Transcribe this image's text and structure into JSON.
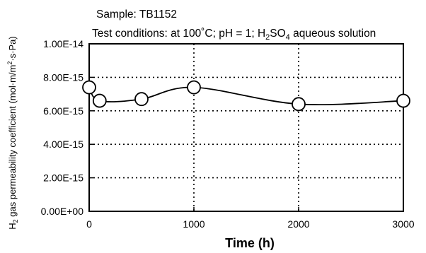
{
  "chart_data": {
    "type": "line",
    "header": {
      "sample": "Sample: TB1152",
      "conditions_prefix": "Test conditions: at 100",
      "conditions_degree": "˚",
      "conditions_mid": "C; pH = 1; H",
      "conditions_sub1": "2",
      "conditions_so": "SO",
      "conditions_sub2": "4",
      "conditions_suffix": " aqueous solution"
    },
    "xlabel": "Time (h)",
    "ylabel": {
      "h": "H",
      "h_sub": "2",
      "text": " gas permeability coefficient (mol·m/m",
      "sup": "2",
      "end": "·s·Pa)"
    },
    "x_ticks": [
      0,
      1000,
      2000,
      3000
    ],
    "x_tick_labels": [
      "0",
      "1000",
      "2000",
      "3000"
    ],
    "xlim": [
      0,
      3000
    ],
    "y_ticks": [
      0,
      2e-15,
      4e-15,
      6e-15,
      8e-15,
      1e-14
    ],
    "y_tick_labels": [
      "0.00E+00",
      "2.00E-15",
      "4.00E-15",
      "6.00E-15",
      "8.00E-15",
      "1.00E-14"
    ],
    "ylim": [
      0,
      1e-14
    ],
    "grid": "dotted",
    "series": [
      {
        "x": [
          0,
          100,
          500,
          1000,
          2000,
          3000
        ],
        "y": [
          7.4e-15,
          6.6e-15,
          6.7e-15,
          7.4e-15,
          6.4e-15,
          6.6e-15
        ]
      }
    ]
  }
}
